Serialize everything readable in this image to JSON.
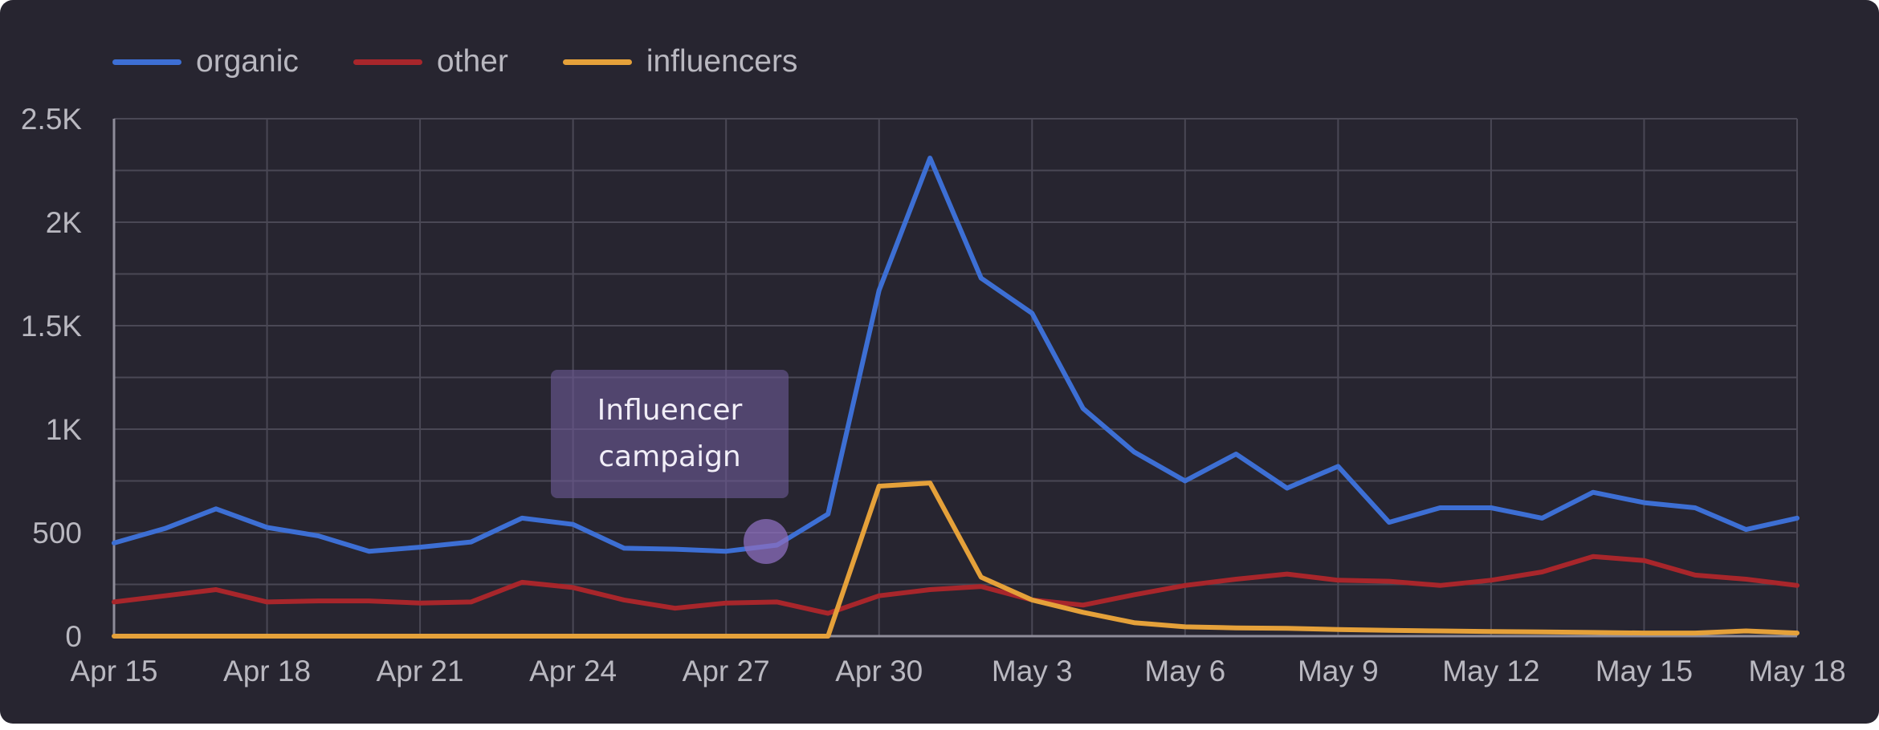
{
  "colors": {
    "background": "#272530",
    "grid": "#4a4855",
    "axis": "#8e8c99",
    "text": "#b9b8c0"
  },
  "chart_data": {
    "type": "line",
    "title": "",
    "xlabel": "",
    "ylabel": "",
    "ylim": [
      0,
      2500
    ],
    "grid": true,
    "legend_position": "top-left",
    "yticks": [
      0,
      500,
      1000,
      1500,
      2000,
      2500
    ],
    "ytick_labels": [
      "0",
      "500",
      "1K",
      "1.5K",
      "2K",
      "2.5K"
    ],
    "x_tick_labels": [
      "Apr 15",
      "Apr 18",
      "Apr 21",
      "Apr 24",
      "Apr 27",
      "Apr 30",
      "May 3",
      "May 6",
      "May 9",
      "May 12",
      "May 15",
      "May 18"
    ],
    "x": [
      "Apr 15",
      "Apr 16",
      "Apr 17",
      "Apr 18",
      "Apr 19",
      "Apr 20",
      "Apr 21",
      "Apr 22",
      "Apr 23",
      "Apr 24",
      "Apr 25",
      "Apr 26",
      "Apr 27",
      "Apr 28",
      "Apr 29",
      "Apr 30",
      "May 1",
      "May 2",
      "May 3",
      "May 4",
      "May 5",
      "May 6",
      "May 7",
      "May 8",
      "May 9",
      "May 10",
      "May 11",
      "May 12",
      "May 13",
      "May 14",
      "May 15",
      "May 16",
      "May 17",
      "May 18"
    ],
    "series": [
      {
        "name": "organic",
        "color": "#3d6fd4",
        "values": [
          450,
          520,
          615,
          525,
          485,
          410,
          430,
          455,
          570,
          540,
          425,
          420,
          410,
          440,
          590,
          1670,
          2310,
          1730,
          1560,
          1100,
          890,
          750,
          880,
          715,
          820,
          550,
          620,
          620,
          570,
          695,
          645,
          620,
          515,
          570
        ]
      },
      {
        "name": "other",
        "color": "#a8262b",
        "values": [
          165,
          195,
          225,
          165,
          170,
          170,
          160,
          165,
          260,
          235,
          175,
          135,
          160,
          165,
          110,
          195,
          225,
          240,
          175,
          150,
          200,
          245,
          275,
          300,
          270,
          265,
          245,
          270,
          310,
          385,
          365,
          295,
          275,
          245
        ]
      },
      {
        "name": "influencers",
        "color": "#e5a13a",
        "values": [
          0,
          0,
          0,
          0,
          0,
          0,
          0,
          0,
          0,
          0,
          0,
          0,
          0,
          0,
          0,
          725,
          740,
          285,
          175,
          115,
          65,
          45,
          40,
          38,
          32,
          28,
          25,
          22,
          20,
          18,
          15,
          15,
          25,
          15
        ]
      }
    ],
    "annotations": [
      {
        "text": "Influencer campaign",
        "x": "Apr 28",
        "y": 440
      }
    ]
  }
}
